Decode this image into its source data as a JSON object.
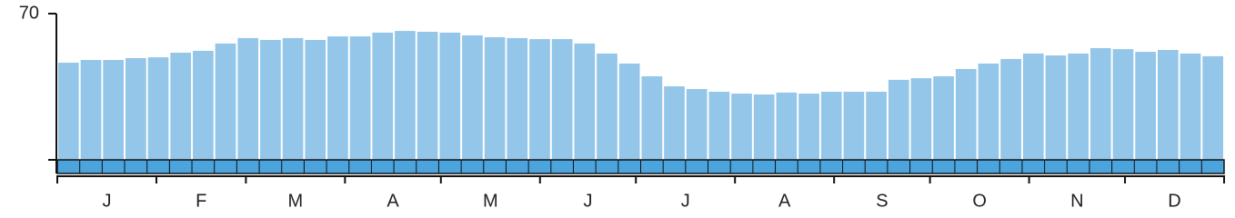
{
  "chart_data": {
    "type": "bar",
    "categories": [
      null,
      null,
      null,
      null,
      null,
      null,
      null,
      null,
      null,
      null,
      null,
      null,
      null,
      null,
      null,
      null,
      null,
      null,
      null,
      null,
      null,
      null,
      null,
      null,
      null,
      null,
      null,
      null,
      null,
      null,
      null,
      null,
      null,
      null,
      null,
      null,
      null,
      null,
      null,
      null,
      null,
      null,
      null,
      null,
      null,
      null,
      null,
      null,
      null,
      null,
      null,
      null
    ],
    "values": [
      46.5,
      47.8,
      47.8,
      48.7,
      49.1,
      51.3,
      52.2,
      55.7,
      58.3,
      57.4,
      58.3,
      57.4,
      59.1,
      59.1,
      60.9,
      61.7,
      61.3,
      60.9,
      59.6,
      58.7,
      58.3,
      57.8,
      57.8,
      55.7,
      50.9,
      46.1,
      40,
      35.2,
      33.9,
      32.6,
      31.7,
      31.3,
      32.2,
      31.7,
      32.6,
      32.6,
      32.6,
      38.3,
      39.1,
      40,
      43.5,
      46.1,
      48.3,
      50.9,
      50,
      50.9,
      53.5,
      53,
      51.7,
      52.6,
      50.9,
      49.6
    ],
    "color": "#93c6e8",
    "month_labels": [
      "J",
      "F",
      "M",
      "A",
      "M",
      "J",
      "J",
      "A",
      "S",
      "O",
      "N",
      "D"
    ],
    "ylim": [
      0,
      70
    ],
    "yticks": [
      70
    ]
  }
}
